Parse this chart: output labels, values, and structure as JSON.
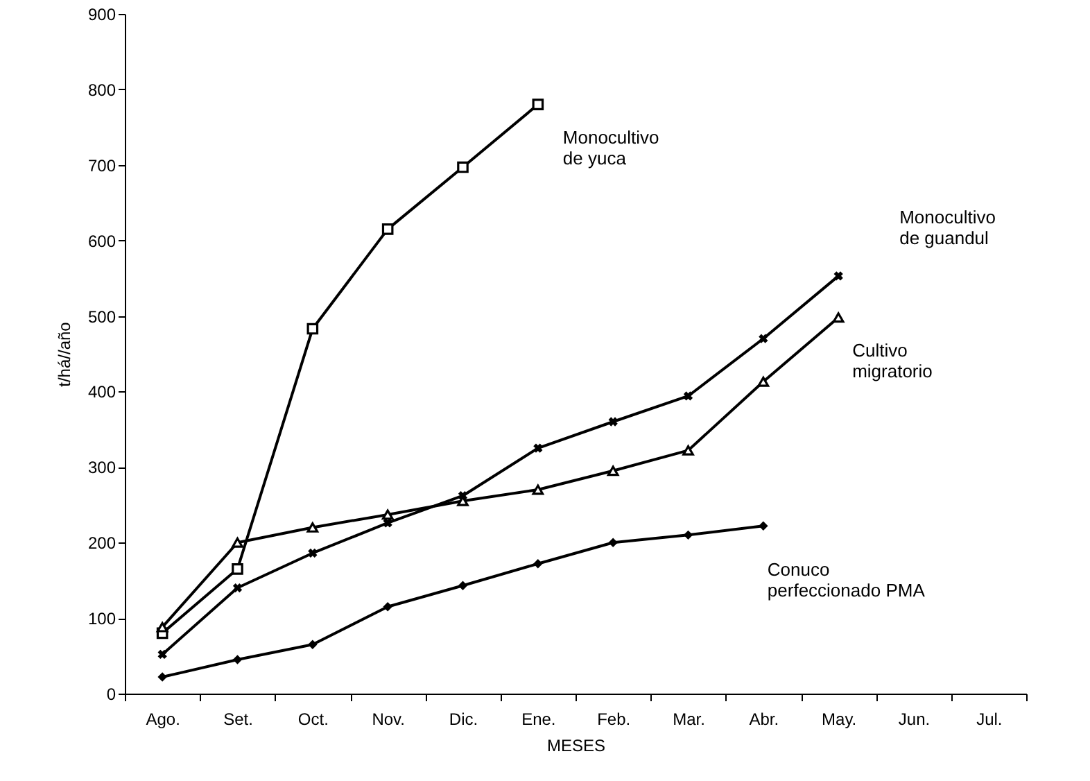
{
  "chart_data": {
    "type": "line",
    "xlabel": "MESES",
    "ylabel": "t/há//año",
    "categories": [
      "Ago.",
      "Set.",
      "Oct.",
      "Nov.",
      "Dic.",
      "Ene.",
      "Feb.",
      "Mar.",
      "Abr.",
      "May.",
      "Jun.",
      "Jul."
    ],
    "ylim": [
      0,
      900
    ],
    "yticks": [
      0,
      100,
      200,
      300,
      400,
      500,
      600,
      700,
      800,
      900
    ],
    "grid": false,
    "series": [
      {
        "name": "Monocultivo\nde yuca",
        "color": "#000000",
        "marker": "square",
        "values": [
          80,
          165,
          483,
          615,
          697,
          780,
          null,
          null,
          null,
          null,
          null,
          null
        ]
      },
      {
        "name": "Monocultivo\nde guandul",
        "color": "#000000",
        "marker": "cross",
        "values": [
          52,
          140,
          186,
          226,
          262,
          325,
          360,
          394,
          470,
          553,
          null,
          null
        ]
      },
      {
        "name": "Cultivo\nmigratorio",
        "color": "#000000",
        "marker": "triangle",
        "values": [
          88,
          200,
          220,
          237,
          255,
          270,
          295,
          322,
          413,
          498,
          null,
          null
        ]
      },
      {
        "name": "Conuco\nperfeccionado PMA",
        "color": "#000000",
        "marker": "diamond",
        "values": [
          22,
          45,
          65,
          115,
          143,
          172,
          200,
          210,
          222,
          null,
          null,
          null
        ]
      }
    ]
  }
}
